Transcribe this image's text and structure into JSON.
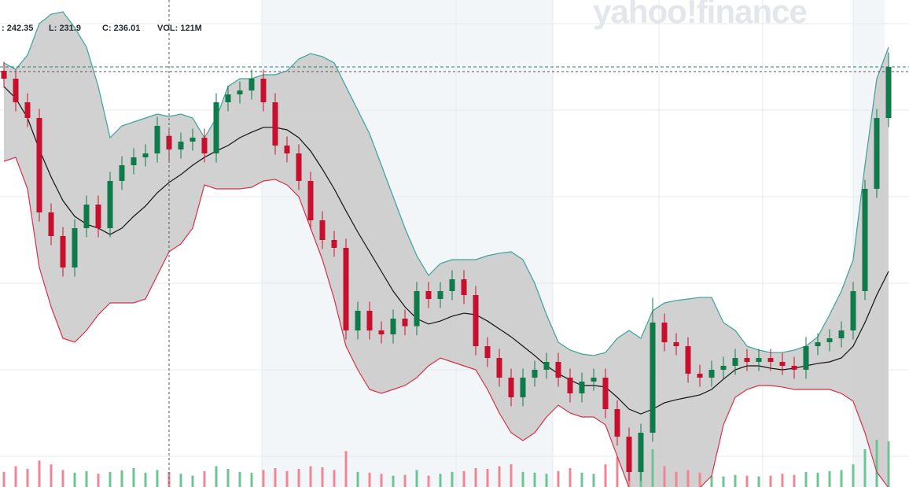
{
  "header": {
    "high": ": 242.35",
    "low": "L: 231.9",
    "close": "C: 236.01",
    "volume": "VOL: 121M"
  },
  "watermark": "yahoo!finance",
  "chart_data": {
    "type": "candlestick",
    "open": [
      262.0,
      259.4,
      251.6,
      246.4,
      215.2,
      207.4,
      197.0,
      210.0,
      217.8,
      210.0,
      225.6,
      230.8,
      233.4,
      234.7,
      240.5,
      236.0,
      238.6,
      239.9,
      234.7,
      251.6,
      254.2,
      255.5,
      259.4,
      251.6,
      237.3,
      234.7,
      225.6,
      212.6,
      206.1,
      203.5,
      176.2,
      182.7,
      176.2,
      174.9,
      180.1,
      177.6,
      189.2,
      186.6,
      189.2,
      193.1,
      187.9,
      171.0,
      167.1,
      160.6,
      154.1,
      160.6,
      163.2,
      165.8,
      160.6,
      155.4,
      159.3,
      160.6,
      150.2,
      141.1,
      129.4,
      142.4,
      178.8,
      172.3,
      171.0,
      161.9,
      160.6,
      163.2,
      164.5,
      167.1,
      165.8,
      167.1,
      165.8,
      164.5,
      163.2,
      171.0,
      172.3,
      173.6,
      176.2,
      189.2,
      223.0,
      246.4
    ],
    "high": [
      265.0,
      262.4,
      254.6,
      249.4,
      218.2,
      210.4,
      213.0,
      220.8,
      220.8,
      228.6,
      233.8,
      236.4,
      237.7,
      246.8,
      242.35,
      241.6,
      242.9,
      242.9,
      254.6,
      257.2,
      258.5,
      262.4,
      262.4,
      254.6,
      240.3,
      237.7,
      228.6,
      215.6,
      209.1,
      206.5,
      185.7,
      185.7,
      179.2,
      183.1,
      183.1,
      192.2,
      192.2,
      192.2,
      196.1,
      196.1,
      190.9,
      174.0,
      170.1,
      163.6,
      163.6,
      166.2,
      168.8,
      168.8,
      163.6,
      162.3,
      163.6,
      163.6,
      153.2,
      144.1,
      145.4,
      187.0,
      181.8,
      175.3,
      174.0,
      164.9,
      166.2,
      167.5,
      170.1,
      170.1,
      170.1,
      170.1,
      168.8,
      167.5,
      174.0,
      175.3,
      176.6,
      179.2,
      192.2,
      226.0,
      249.4,
      268.0
    ],
    "low": [
      256.4,
      248.6,
      243.4,
      212.2,
      204.4,
      194.0,
      194.0,
      207.0,
      207.0,
      207.0,
      222.6,
      227.8,
      230.4,
      231.7,
      231.9,
      233.0,
      235.6,
      231.7,
      231.7,
      248.6,
      251.2,
      252.5,
      248.6,
      234.3,
      231.7,
      222.6,
      209.6,
      203.1,
      200.5,
      173.2,
      173.2,
      173.2,
      171.9,
      171.9,
      174.6,
      174.6,
      183.6,
      183.6,
      186.2,
      184.9,
      168.0,
      164.1,
      157.6,
      151.1,
      151.1,
      157.6,
      160.2,
      157.6,
      152.4,
      152.4,
      156.3,
      147.2,
      138.1,
      126.4,
      126.4,
      139.4,
      169.3,
      168.0,
      158.9,
      157.6,
      157.6,
      160.2,
      161.5,
      162.8,
      162.8,
      162.8,
      161.5,
      160.2,
      160.2,
      168.0,
      169.3,
      170.6,
      173.2,
      186.2,
      220.0,
      243.4
    ],
    "close": [
      259.4,
      251.6,
      246.4,
      215.2,
      207.4,
      197.0,
      210.0,
      217.8,
      210.0,
      225.6,
      230.8,
      233.4,
      234.7,
      243.8,
      236.01,
      238.6,
      239.9,
      234.7,
      251.6,
      254.2,
      255.5,
      259.4,
      251.6,
      237.3,
      234.7,
      225.6,
      212.6,
      206.1,
      203.5,
      176.2,
      182.7,
      176.2,
      174.9,
      180.1,
      177.6,
      189.2,
      186.6,
      189.2,
      193.1,
      187.9,
      171.0,
      167.1,
      160.6,
      154.1,
      160.6,
      163.2,
      165.8,
      160.6,
      155.4,
      159.3,
      160.6,
      150.2,
      141.1,
      129.4,
      142.4,
      178.8,
      172.3,
      171.0,
      161.9,
      160.6,
      163.2,
      164.5,
      167.1,
      165.8,
      167.1,
      165.8,
      164.5,
      163.2,
      171.0,
      172.3,
      173.6,
      176.2,
      189.2,
      223.0,
      246.4,
      263.3
    ],
    "volume": [
      40,
      55,
      48,
      70,
      60,
      45,
      38,
      42,
      35,
      40,
      44,
      50,
      38,
      45,
      40,
      35,
      30,
      42,
      55,
      48,
      40,
      38,
      45,
      50,
      42,
      48,
      55,
      52,
      45,
      95,
      40,
      38,
      35,
      30,
      32,
      45,
      30,
      35,
      40,
      42,
      50,
      48,
      55,
      60,
      40,
      38,
      35,
      42,
      50,
      38,
      35,
      60,
      80,
      110,
      70,
      100,
      55,
      40,
      45,
      38,
      30,
      28,
      32,
      30,
      28,
      30,
      35,
      32,
      40,
      38,
      42,
      45,
      60,
      100,
      125,
      121
    ],
    "bands": {
      "upper": [
        264.6,
        262.5,
        267.2,
        277.6,
        280.7,
        281.5,
        276.3,
        269.8,
        256.8,
        239.9,
        243.8,
        245.1,
        246.4,
        247.7,
        246.9,
        247.7,
        246.4,
        239.9,
        246.4,
        256.8,
        259.4,
        259.4,
        260.7,
        260.7,
        262.0,
        265.9,
        267.7,
        266.7,
        264.6,
        256.8,
        249.0,
        241.2,
        230.8,
        220.4,
        210.0,
        200.9,
        194.4,
        198.3,
        199.6,
        199.6,
        199.6,
        200.9,
        201.7,
        202.2,
        199.6,
        191.8,
        181.4,
        172.3,
        169.7,
        168.4,
        167.9,
        168.9,
        173.6,
        176.2,
        173.6,
        182.7,
        185.3,
        186.1,
        186.6,
        187.1,
        187.1,
        178.8,
        176.2,
        171.0,
        169.7,
        168.9,
        168.9,
        169.7,
        171.0,
        174.1,
        181.4,
        189.2,
        199.6,
        230.8,
        259.4,
        269.8
      ],
      "middle": [
        256.8,
        252.9,
        246.4,
        236.0,
        226.9,
        219.1,
        213.9,
        211.3,
        210.0,
        207.9,
        210.0,
        213.9,
        217.3,
        221.7,
        225.1,
        227.7,
        230.8,
        233.4,
        235.5,
        237.3,
        239.9,
        241.7,
        243.3,
        243.3,
        242.5,
        239.9,
        235.5,
        229.5,
        223.0,
        215.7,
        208.7,
        202.2,
        195.7,
        189.2,
        184.0,
        180.1,
        178.3,
        179.3,
        180.9,
        181.9,
        181.4,
        179.3,
        176.7,
        174.1,
        171.0,
        167.9,
        164.5,
        161.9,
        159.8,
        158.0,
        158.0,
        157.5,
        154.1,
        150.2,
        148.6,
        150.2,
        152.3,
        153.3,
        154.1,
        154.9,
        156.7,
        160.1,
        163.2,
        164.5,
        164.5,
        163.7,
        163.2,
        163.7,
        164.5,
        165.3,
        165.8,
        167.1,
        171.0,
        178.8,
        187.9,
        195.7
      ],
      "lower": [
        232.1,
        233.4,
        223.0,
        197.0,
        184.0,
        173.6,
        172.3,
        176.2,
        181.4,
        185.3,
        185.3,
        185.3,
        186.6,
        194.4,
        202.2,
        204.8,
        210.0,
        224.3,
        223.0,
        223.0,
        223.0,
        223.5,
        225.6,
        226.1,
        224.3,
        220.4,
        210.0,
        199.6,
        186.6,
        171.0,
        163.2,
        156.7,
        155.4,
        156.7,
        158.0,
        160.6,
        164.5,
        167.1,
        165.8,
        164.5,
        163.2,
        156.7,
        148.9,
        142.4,
        139.8,
        142.4,
        147.6,
        151.5,
        148.9,
        147.6,
        147.6,
        145.0,
        134.6,
        124.2,
        119.0,
        119.0,
        119.0,
        119.0,
        121.6,
        124.2,
        128.1,
        145.0,
        154.1,
        156.7,
        158.0,
        158.0,
        157.5,
        156.7,
        156.7,
        156.7,
        156.7,
        155.4,
        152.8,
        142.4,
        129.4,
        124.2
      ]
    },
    "ylim": [
      124.46,
      285.4
    ],
    "y2lim": [
      0,
      250
    ],
    "colors": {
      "up": "#0f7a4a",
      "down": "#c8102e",
      "up_volume": "#6cc495",
      "down_volume": "#f08595",
      "band_fill": "#c9c9c9",
      "upper": "#3aa39b",
      "lower": "#d8304c",
      "middle": "#111111"
    }
  }
}
